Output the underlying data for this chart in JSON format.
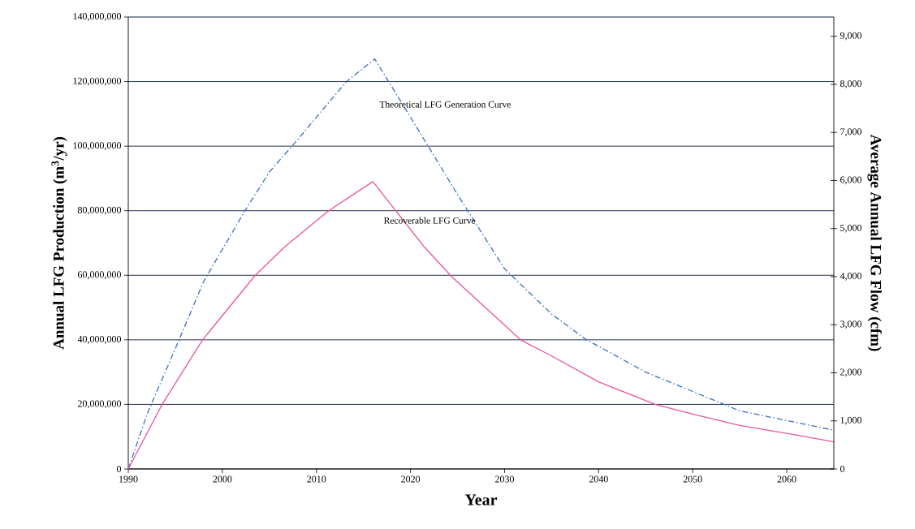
{
  "chart_data": {
    "type": "line",
    "xlabel": "Year",
    "ylabel": "Annual LFG Production (m$^{3}$/yr)",
    "y2label": "Average Annual LFG Flow (cfm)",
    "xlim": [
      1990,
      2065
    ],
    "xticks": [
      1990,
      2000,
      2010,
      2020,
      2030,
      2040,
      2050,
      2060
    ],
    "ylim": [
      0,
      140000000
    ],
    "yticks": [
      0,
      {
        "value": 20000000,
        "label": "20,000,000"
      },
      {
        "value": 40000000,
        "label": "40,000,000"
      },
      {
        "value": 60000000,
        "label": "60,000,000"
      },
      {
        "value": 80000000,
        "label": "80,000,000"
      },
      {
        "value": 100000000,
        "label": "100,000,000"
      },
      {
        "value": 120000000,
        "label": "120,000,000"
      },
      {
        "value": 140000000,
        "label": "140,000,000"
      }
    ],
    "y2lim": [
      0,
      9400
    ],
    "y2ticks": [
      0,
      {
        "value": 1000,
        "label": "1,000"
      },
      {
        "value": 2000,
        "label": "2,000"
      },
      {
        "value": 3000,
        "label": "3,000"
      },
      {
        "value": 4000,
        "label": "4,000"
      },
      {
        "value": 5000,
        "label": "5,000"
      },
      {
        "value": 6000,
        "label": "6,000"
      },
      {
        "value": 7000,
        "label": "7,000"
      },
      {
        "value": 8000,
        "label": "8,000"
      },
      {
        "value": 9000,
        "label": "9,000"
      }
    ],
    "grid": "y",
    "marker": "none",
    "series": [
      {
        "color": "#3a6fc4",
        "line_style": "dashed",
        "x": [
          1990,
          1992,
          1995.4,
          1998,
          2000,
          2002.4,
          2005,
          2008,
          2010,
          2013.2,
          2016.2,
          2020,
          2025,
          2030,
          2035,
          2038.7,
          2040,
          2045,
          2050,
          2055,
          2060,
          2065
        ],
        "values": [
          0,
          17000000,
          40000000,
          58000000,
          68000000,
          80000000,
          92000000,
          102000000,
          109000000,
          120000000,
          127000000,
          109000000,
          85000000,
          62000000,
          48000000,
          40000000,
          38000000,
          30000000,
          24000000,
          18000000,
          15000000,
          12000000
        ]
      },
      {
        "color": "#e8559f",
        "line_style": "solid",
        "x": [
          1990,
          1993.6,
          1997.9,
          2003.5,
          2006.7,
          2011.3,
          2016,
          2021.4,
          2024.4,
          2031.7,
          2035,
          2040,
          2046,
          2050,
          2055,
          2060,
          2065
        ],
        "values": [
          0,
          20000000,
          40000000,
          60000000,
          69000000,
          80000000,
          89000000,
          69000000,
          59500000,
          40000000,
          35000000,
          27000000,
          20000000,
          17000000,
          13500000,
          11000000,
          8400000
        ]
      }
    ],
    "annotations": [
      "Theoretical LFG Generation Curve",
      "Recoverable LFG Curve"
    ]
  }
}
